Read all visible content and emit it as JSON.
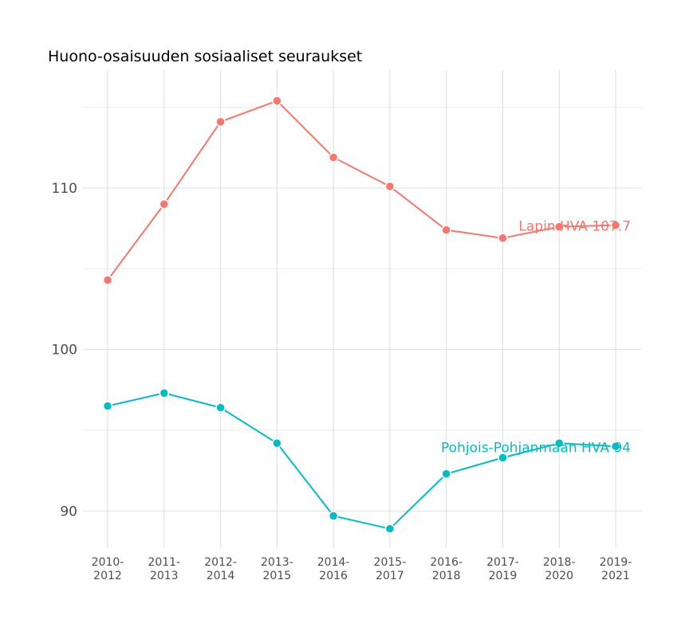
{
  "chart_data": {
    "type": "line",
    "title": "Huono-osaisuuden sosiaaliset seuraukset",
    "xlabel": "",
    "ylabel": "",
    "categories": [
      [
        "2010-",
        "2012"
      ],
      [
        "2011-",
        "2013"
      ],
      [
        "2012-",
        "2014"
      ],
      [
        "2013-",
        "2015"
      ],
      [
        "2014-",
        "2016"
      ],
      [
        "2015-",
        "2017"
      ],
      [
        "2016-",
        "2018"
      ],
      [
        "2017-",
        "2019"
      ],
      [
        "2018-",
        "2020"
      ],
      [
        "2019-",
        "2021"
      ]
    ],
    "ylim": [
      87.7,
      117.3
    ],
    "yticks": [
      90,
      100,
      110
    ],
    "minor_grid": [
      95,
      105,
      115
    ],
    "grid": true,
    "legend": "none",
    "series": [
      {
        "name": "Lapin HVA",
        "color": "#F8766D",
        "end_label": "Lapin HVA 107.7",
        "values": [
          104.3,
          109.0,
          114.1,
          115.4,
          111.9,
          110.1,
          107.4,
          106.9,
          107.6,
          107.7
        ]
      },
      {
        "name": "Pohjois-Pohjanmaan HVA",
        "color": "#00BFC4",
        "end_label": "Pohjois-Pohjanmaan HVA 94",
        "values": [
          96.5,
          97.3,
          96.4,
          94.2,
          89.7,
          88.9,
          92.3,
          93.3,
          94.2,
          94.0
        ]
      }
    ]
  }
}
